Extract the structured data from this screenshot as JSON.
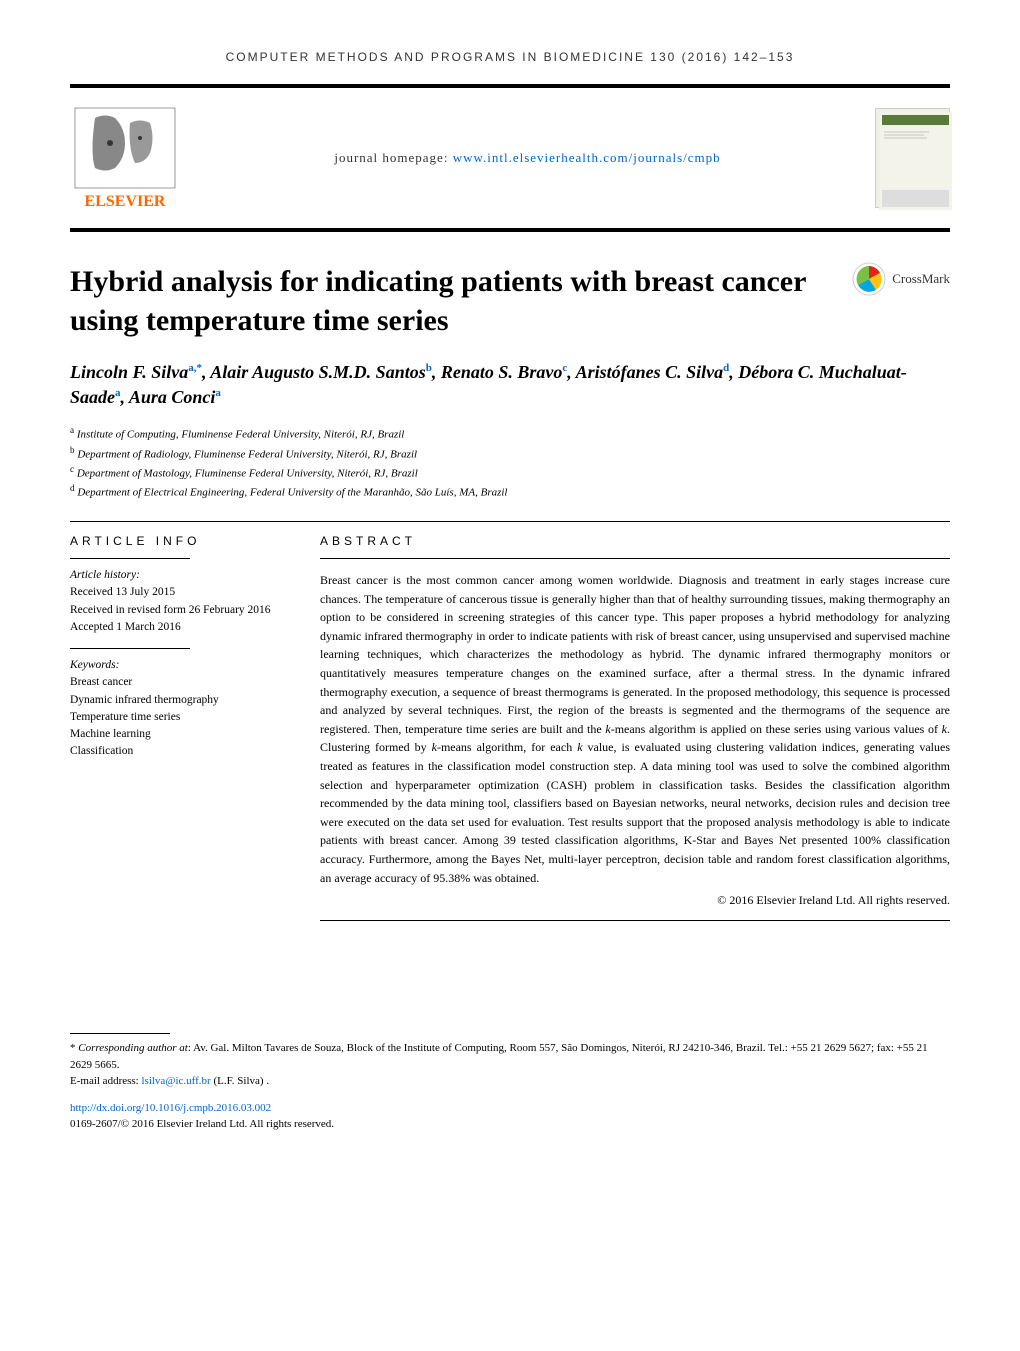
{
  "running_header": "COMPUTER METHODS AND PROGRAMS IN BIOMEDICINE 130 (2016) 142–153",
  "journal_homepage_label": "journal homepage: ",
  "journal_homepage_url": "www.intl.elsevierhealth.com/journals/cmpb",
  "title": "Hybrid analysis for indicating patients with breast cancer using temperature time series",
  "crossmark_label": "CrossMark",
  "authors_html": "Lincoln F. Silva<sup>a,*</sup>, Alair Augusto S.M.D. Santos<sup>b</sup>, Renato S. Bravo<sup>c</sup>, Aristófanes C. Silva<sup>d</sup>, Débora C. Muchaluat-Saade<sup>a</sup>, Aura Conci<sup>a</sup>",
  "affiliations": [
    {
      "sup": "a",
      "text": "Institute of Computing, Fluminense Federal University, Niterói, RJ, Brazil"
    },
    {
      "sup": "b",
      "text": "Department of Radiology, Fluminense Federal University, Niterói, RJ, Brazil"
    },
    {
      "sup": "c",
      "text": "Department of Mastology, Fluminense Federal University, Niterói, RJ, Brazil"
    },
    {
      "sup": "d",
      "text": "Department of Electrical Engineering, Federal University of the Maranhão, São Luís, MA, Brazil"
    }
  ],
  "article_info_label": "ARTICLE INFO",
  "abstract_label": "ABSTRACT",
  "history": {
    "label": "Article history:",
    "received": "Received 13 July 2015",
    "revised": "Received in revised form 26 February 2016",
    "accepted": "Accepted 1 March 2016"
  },
  "keywords_label": "Keywords:",
  "keywords": [
    "Breast cancer",
    "Dynamic infrared thermography",
    "Temperature time series",
    "Machine learning",
    "Classification"
  ],
  "abstract": "Breast cancer is the most common cancer among women worldwide. Diagnosis and treatment in early stages increase cure chances. The temperature of cancerous tissue is generally higher than that of healthy surrounding tissues, making thermography an option to be considered in screening strategies of this cancer type. This paper proposes a hybrid methodology for analyzing dynamic infrared thermography in order to indicate patients with risk of breast cancer, using unsupervised and supervised machine learning techniques, which characterizes the methodology as hybrid. The dynamic infrared thermography monitors or quantitatively measures temperature changes on the examined surface, after a thermal stress. In the dynamic infrared thermography execution, a sequence of breast thermograms is generated. In the proposed methodology, this sequence is processed and analyzed by several techniques. First, the region of the breasts is segmented and the thermograms of the sequence are registered. Then, temperature time series are built and the k-means algorithm is applied on these series using various values of k. Clustering formed by k-means algorithm, for each k value, is evaluated using clustering validation indices, generating values treated as features in the classification model construction step. A data mining tool was used to solve the combined algorithm selection and hyperparameter optimization (CASH) problem in classification tasks. Besides the classification algorithm recommended by the data mining tool, classifiers based on Bayesian networks, neural networks, decision rules and decision tree were executed on the data set used for evaluation. Test results support that the proposed analysis methodology is able to indicate patients with breast cancer. Among 39 tested classification algorithms, K-Star and Bayes Net presented 100% classification accuracy. Furthermore, among the Bayes Net, multi-layer perceptron, decision table and random forest classification algorithms, an average accuracy of 95.38% was obtained.",
  "copyright": "© 2016 Elsevier Ireland Ltd. All rights reserved.",
  "corresponding": "Corresponding author at: Av. Gal. Milton Tavares de Souza, Block of the Institute of Computing, Room 557, São Domingos, Niterói, RJ 24210-346, Brazil. Tel.: +55 21 2629 5627; fax: +55 21 2629 5665.",
  "email_label": "E-mail address: ",
  "email": "lsilva@ic.uff.br",
  "email_suffix": " (L.F. Silva) .",
  "doi_url": "http://dx.doi.org/10.1016/j.cmpb.2016.03.002",
  "issn_line": "0169-2607/© 2016 Elsevier Ireland Ltd. All rights reserved.",
  "colors": {
    "link": "#0066cc",
    "elsevier_orange": "#ff6600",
    "crossmark_red": "#e2231a",
    "crossmark_yellow": "#ffc20e",
    "crossmark_blue": "#00a7e1"
  },
  "typography": {
    "title_fontsize": 30,
    "authors_fontsize": 18,
    "body_fontsize": 12,
    "small_fontsize": 11
  }
}
